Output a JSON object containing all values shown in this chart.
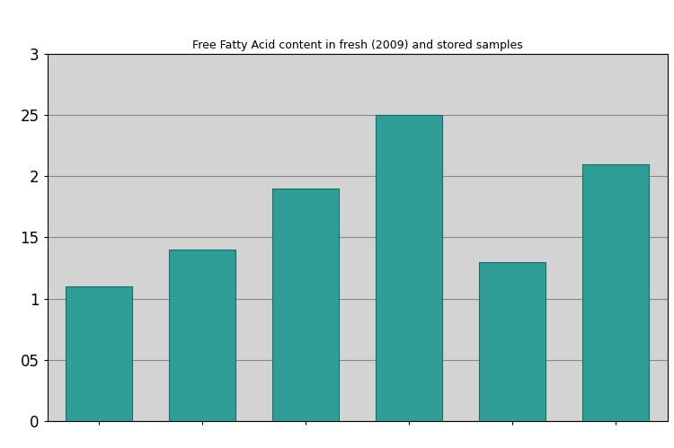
{
  "title": "Free Fatty Acid content in fresh (2009) and stored samples",
  "values": [
    1.1,
    1.4,
    1.9,
    2.5,
    1.3,
    2.1
  ],
  "bar_color": "#2e9e96",
  "bar_edge_color": "#1a6b66",
  "background_color": "#d3d3d3",
  "figure_bg": "#ffffff",
  "ylim": [
    0,
    3
  ],
  "yticks": [
    0,
    0.5,
    1.0,
    1.5,
    2.0,
    2.5,
    3.0
  ],
  "ytick_labels": [
    "0",
    "05",
    "1",
    "15",
    "2",
    "25",
    "3"
  ],
  "grid_color": "#888888",
  "num_bars": 6
}
